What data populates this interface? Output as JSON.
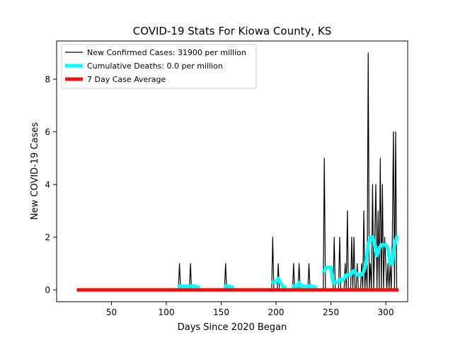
{
  "chart_data": {
    "type": "line",
    "title": "COVID-19 Stats For Kiowa County, KS",
    "xlabel": "Days Since 2020 Began",
    "ylabel": "New COVID-19 Cases",
    "xlim": [
      0,
      320
    ],
    "ylim": [
      -0.45,
      9.45
    ],
    "xticks": [
      50,
      100,
      150,
      200,
      250,
      300
    ],
    "yticks": [
      0,
      2,
      4,
      6,
      8
    ],
    "grid": false,
    "legend_position": "upper-left",
    "series": [
      {
        "name": "New Confirmed Cases: 31900 per million",
        "color": "#000000",
        "points": [
          [
            20,
            0
          ],
          [
            111,
            0
          ],
          [
            112,
            1
          ],
          [
            113,
            0
          ],
          [
            121,
            0
          ],
          [
            122,
            1
          ],
          [
            123,
            0
          ],
          [
            153,
            0
          ],
          [
            154,
            1
          ],
          [
            155,
            0
          ],
          [
            196,
            0
          ],
          [
            197,
            2
          ],
          [
            198,
            0
          ],
          [
            201,
            0
          ],
          [
            202,
            1
          ],
          [
            203,
            0
          ],
          [
            215,
            0
          ],
          [
            216,
            1
          ],
          [
            217,
            0
          ],
          [
            220,
            0
          ],
          [
            221,
            1
          ],
          [
            222,
            0
          ],
          [
            229,
            0
          ],
          [
            230,
            1
          ],
          [
            231,
            0
          ],
          [
            243,
            0
          ],
          [
            244,
            5
          ],
          [
            245,
            0
          ],
          [
            252,
            0
          ],
          [
            253,
            2
          ],
          [
            254,
            0
          ],
          [
            257,
            0
          ],
          [
            258,
            2
          ],
          [
            259,
            0
          ],
          [
            262,
            0
          ],
          [
            263,
            1
          ],
          [
            264,
            0
          ],
          [
            265,
            3
          ],
          [
            266,
            0
          ],
          [
            268,
            0
          ],
          [
            269,
            2
          ],
          [
            270,
            0
          ],
          [
            271,
            2
          ],
          [
            272,
            0
          ],
          [
            273,
            0
          ],
          [
            274,
            1
          ],
          [
            275,
            0
          ],
          [
            277,
            0
          ],
          [
            278,
            1
          ],
          [
            279,
            0
          ],
          [
            280,
            3
          ],
          [
            281,
            0
          ],
          [
            282,
            1
          ],
          [
            283,
            0
          ],
          [
            284,
            9
          ],
          [
            285,
            0
          ],
          [
            286,
            1
          ],
          [
            287,
            0
          ],
          [
            288,
            4
          ],
          [
            289,
            0
          ],
          [
            290,
            2
          ],
          [
            291,
            4
          ],
          [
            292,
            0
          ],
          [
            293,
            3
          ],
          [
            294,
            0
          ],
          [
            295,
            5
          ],
          [
            296,
            0
          ],
          [
            297,
            4
          ],
          [
            298,
            0
          ],
          [
            299,
            2
          ],
          [
            300,
            1
          ],
          [
            301,
            0
          ],
          [
            302,
            1
          ],
          [
            303,
            0
          ],
          [
            304,
            1
          ],
          [
            305,
            0
          ],
          [
            306,
            2
          ],
          [
            307,
            6
          ],
          [
            308,
            0
          ],
          [
            309,
            6
          ],
          [
            310,
            0
          ]
        ]
      },
      {
        "name": "Cumulative Deaths: 0.0 per million",
        "color": "#00ffff",
        "points": [
          [
            112,
            0.14
          ],
          [
            115,
            0.14
          ],
          [
            118,
            0.14
          ],
          [
            120,
            0.14
          ],
          [
            123,
            0.14
          ],
          [
            126,
            0.14
          ],
          [
            129,
            0.1
          ],
          null,
          [
            154,
            0.14
          ],
          [
            157,
            0.14
          ],
          [
            160,
            0.1
          ],
          null,
          [
            197,
            0.28
          ],
          [
            199,
            0.28
          ],
          [
            202,
            0.43
          ],
          [
            204,
            0.28
          ],
          [
            206,
            0.14
          ],
          [
            208,
            0.1
          ],
          null,
          [
            216,
            0.14
          ],
          [
            219,
            0.14
          ],
          [
            221,
            0.28
          ],
          [
            223,
            0.14
          ],
          [
            226,
            0.14
          ],
          [
            229,
            0.14
          ],
          [
            231,
            0.14
          ],
          [
            233,
            0.14
          ],
          [
            236,
            0.1
          ],
          null,
          [
            244,
            0.72
          ],
          [
            246,
            0.85
          ],
          [
            248,
            0.85
          ],
          [
            250,
            0.85
          ],
          [
            252,
            0.28
          ],
          [
            254,
            0.28
          ],
          [
            256,
            0.28
          ],
          [
            258,
            0.4
          ],
          [
            260,
            0.35
          ],
          [
            262,
            0.42
          ],
          [
            264,
            0.57
          ],
          [
            266,
            0.57
          ],
          [
            268,
            0.57
          ],
          [
            270,
            0.71
          ],
          [
            272,
            0.71
          ],
          [
            274,
            0.57
          ],
          [
            276,
            0.57
          ],
          [
            278,
            0.57
          ],
          [
            280,
            0.71
          ],
          [
            282,
            1.0
          ],
          [
            284,
            1.71
          ],
          [
            286,
            2.0
          ],
          [
            288,
            2.0
          ],
          [
            290,
            1.7
          ],
          [
            292,
            1.3
          ],
          [
            294,
            1.57
          ],
          [
            296,
            1.71
          ],
          [
            298,
            1.71
          ],
          [
            300,
            1.71
          ],
          [
            302,
            1.57
          ],
          [
            304,
            1.0
          ],
          [
            306,
            1.0
          ],
          [
            308,
            1.71
          ],
          [
            310,
            2.0
          ]
        ]
      },
      {
        "name": "7 Day Case Average",
        "color": "#ee1111",
        "points": [
          [
            20,
            0
          ],
          [
            310,
            0
          ]
        ]
      }
    ]
  }
}
